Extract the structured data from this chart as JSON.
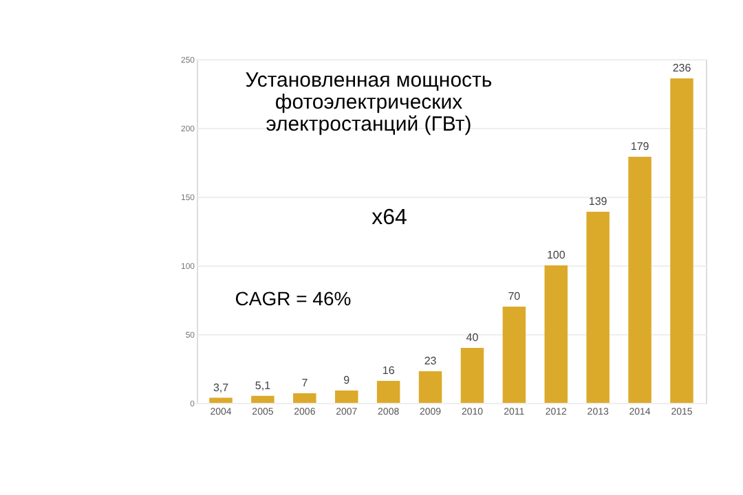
{
  "chart_data": {
    "type": "bar",
    "title": "Установленная мощность\nфотоэлектрических\nэлектростанций (ГВт)",
    "categories": [
      "2004",
      "2005",
      "2006",
      "2007",
      "2008",
      "2009",
      "2010",
      "2011",
      "2012",
      "2013",
      "2014",
      "2015"
    ],
    "values": [
      3.7,
      5.1,
      7,
      9,
      16,
      23,
      40,
      70,
      100,
      139,
      179,
      236
    ],
    "value_labels": [
      "3,7",
      "5,1",
      "7",
      "9",
      "16",
      "23",
      "40",
      "70",
      "100",
      "139",
      "179",
      "236"
    ],
    "color": "#dcaa2a",
    "ylim": [
      0,
      250
    ],
    "yticks": [
      0,
      50,
      100,
      150,
      200,
      250
    ],
    "grid": "y",
    "annotations": [
      "x64",
      "CAGR = 46%"
    ]
  }
}
